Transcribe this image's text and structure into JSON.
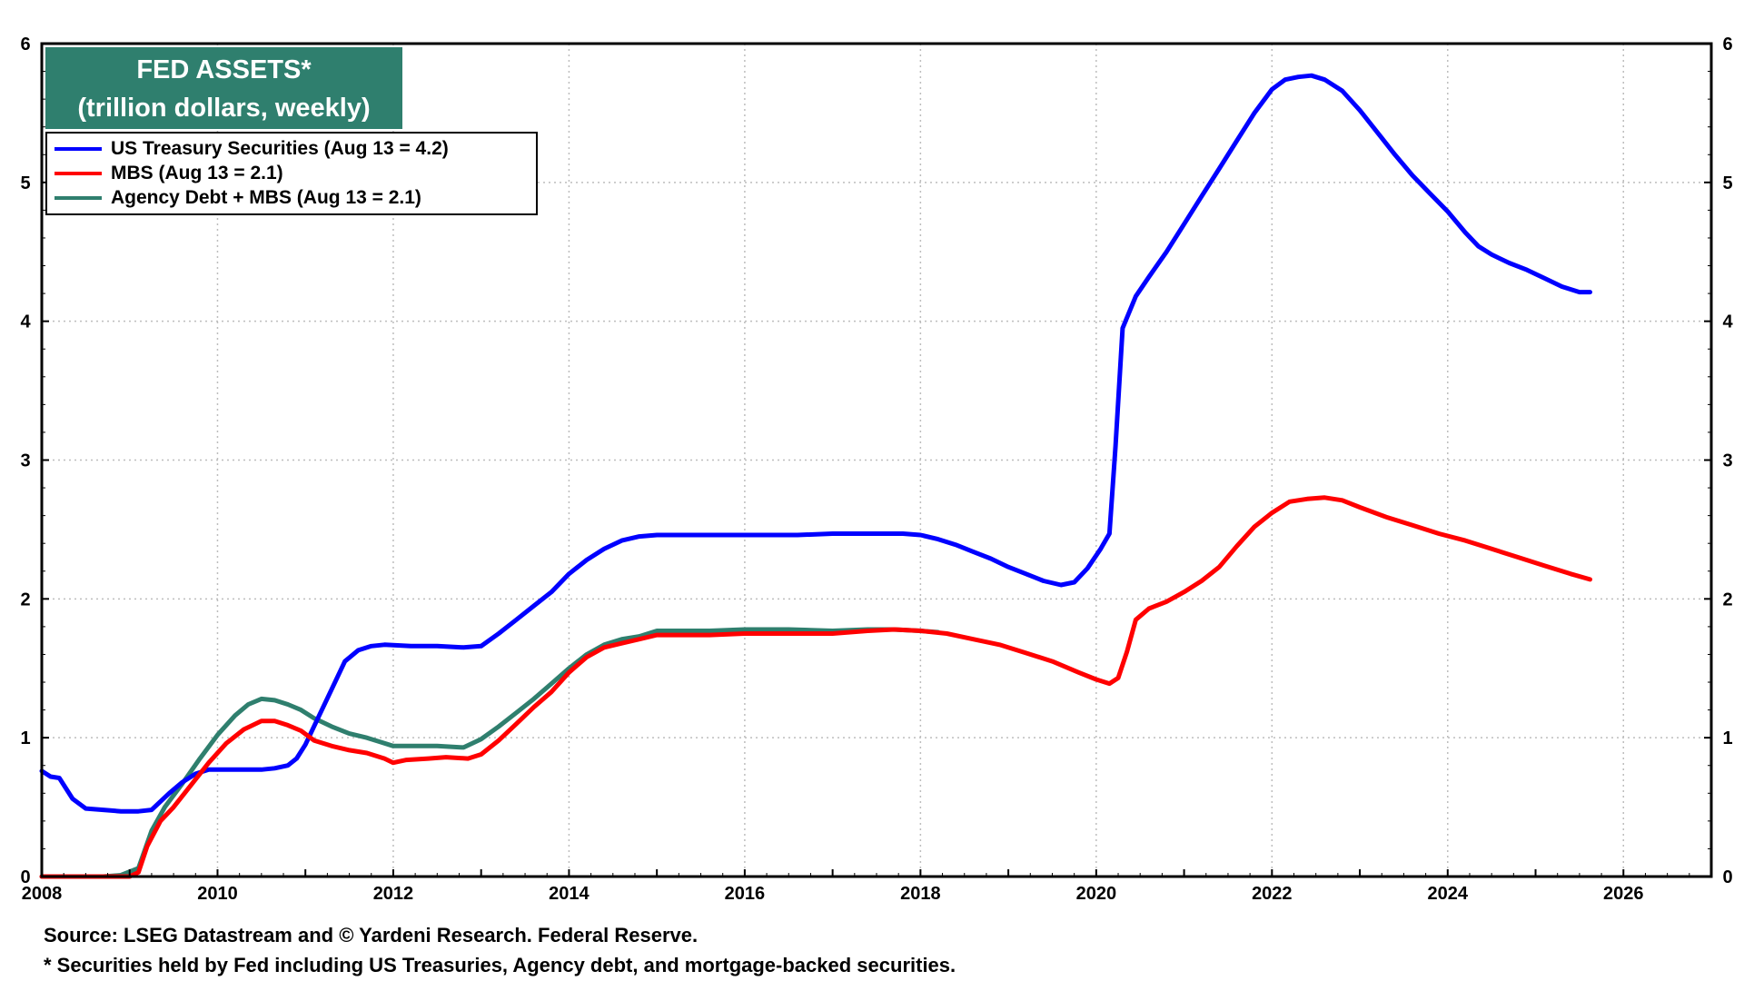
{
  "chart_data": {
    "type": "line",
    "title": "FED ASSETS*",
    "subtitle": "(trillion dollars, weekly)",
    "xlim": [
      2008,
      2027
    ],
    "ylim": [
      0,
      6
    ],
    "x_ticks": [
      "2008",
      "2010",
      "2012",
      "2014",
      "2016",
      "2018",
      "2020",
      "2022",
      "2024",
      "2026"
    ],
    "y_ticks": [
      "0",
      "1",
      "2",
      "3",
      "4",
      "5",
      "6"
    ],
    "grid": true,
    "legend_position": "top-left",
    "series": [
      {
        "name": "US Treasury Securities (Aug 13 = 4.2)",
        "color": "#0000ff",
        "points": [
          [
            2008.0,
            0.76
          ],
          [
            2008.1,
            0.72
          ],
          [
            2008.2,
            0.71
          ],
          [
            2008.35,
            0.56
          ],
          [
            2008.5,
            0.49
          ],
          [
            2008.7,
            0.48
          ],
          [
            2008.9,
            0.47
          ],
          [
            2009.1,
            0.47
          ],
          [
            2009.25,
            0.48
          ],
          [
            2009.45,
            0.6
          ],
          [
            2009.6,
            0.68
          ],
          [
            2009.75,
            0.74
          ],
          [
            2009.9,
            0.77
          ],
          [
            2010.2,
            0.77
          ],
          [
            2010.5,
            0.77
          ],
          [
            2010.65,
            0.78
          ],
          [
            2010.8,
            0.8
          ],
          [
            2010.9,
            0.85
          ],
          [
            2011.0,
            0.95
          ],
          [
            2011.15,
            1.15
          ],
          [
            2011.3,
            1.35
          ],
          [
            2011.45,
            1.55
          ],
          [
            2011.6,
            1.63
          ],
          [
            2011.75,
            1.66
          ],
          [
            2011.9,
            1.67
          ],
          [
            2012.2,
            1.66
          ],
          [
            2012.5,
            1.66
          ],
          [
            2012.8,
            1.65
          ],
          [
            2013.0,
            1.66
          ],
          [
            2013.2,
            1.75
          ],
          [
            2013.4,
            1.85
          ],
          [
            2013.6,
            1.95
          ],
          [
            2013.8,
            2.05
          ],
          [
            2014.0,
            2.18
          ],
          [
            2014.2,
            2.28
          ],
          [
            2014.4,
            2.36
          ],
          [
            2014.6,
            2.42
          ],
          [
            2014.8,
            2.45
          ],
          [
            2015.0,
            2.46
          ],
          [
            2015.5,
            2.46
          ],
          [
            2016.0,
            2.46
          ],
          [
            2016.6,
            2.46
          ],
          [
            2017.0,
            2.47
          ],
          [
            2017.4,
            2.47
          ],
          [
            2017.8,
            2.47
          ],
          [
            2018.0,
            2.46
          ],
          [
            2018.2,
            2.43
          ],
          [
            2018.4,
            2.39
          ],
          [
            2018.6,
            2.34
          ],
          [
            2018.8,
            2.29
          ],
          [
            2019.0,
            2.23
          ],
          [
            2019.2,
            2.18
          ],
          [
            2019.4,
            2.13
          ],
          [
            2019.6,
            2.1
          ],
          [
            2019.75,
            2.12
          ],
          [
            2019.9,
            2.22
          ],
          [
            2020.05,
            2.36
          ],
          [
            2020.15,
            2.47
          ],
          [
            2020.22,
            3.1
          ],
          [
            2020.3,
            3.95
          ],
          [
            2020.45,
            4.18
          ],
          [
            2020.6,
            4.32
          ],
          [
            2020.8,
            4.5
          ],
          [
            2021.0,
            4.7
          ],
          [
            2021.2,
            4.9
          ],
          [
            2021.4,
            5.1
          ],
          [
            2021.6,
            5.3
          ],
          [
            2021.8,
            5.5
          ],
          [
            2022.0,
            5.67
          ],
          [
            2022.15,
            5.74
          ],
          [
            2022.3,
            5.76
          ],
          [
            2022.45,
            5.77
          ],
          [
            2022.6,
            5.74
          ],
          [
            2022.8,
            5.66
          ],
          [
            2023.0,
            5.52
          ],
          [
            2023.2,
            5.36
          ],
          [
            2023.4,
            5.2
          ],
          [
            2023.6,
            5.05
          ],
          [
            2023.8,
            4.92
          ],
          [
            2024.0,
            4.79
          ],
          [
            2024.2,
            4.64
          ],
          [
            2024.35,
            4.54
          ],
          [
            2024.5,
            4.48
          ],
          [
            2024.7,
            4.42
          ],
          [
            2024.9,
            4.37
          ],
          [
            2025.1,
            4.31
          ],
          [
            2025.3,
            4.25
          ],
          [
            2025.5,
            4.21
          ],
          [
            2025.62,
            4.21
          ]
        ]
      },
      {
        "name": "MBS (Aug 13 = 2.1)",
        "color": "#ff0000",
        "points": [
          [
            2008.0,
            0.0
          ],
          [
            2009.0,
            0.0
          ],
          [
            2009.1,
            0.03
          ],
          [
            2009.2,
            0.22
          ],
          [
            2009.35,
            0.4
          ],
          [
            2009.5,
            0.5
          ],
          [
            2009.7,
            0.66
          ],
          [
            2009.9,
            0.82
          ],
          [
            2010.1,
            0.96
          ],
          [
            2010.3,
            1.06
          ],
          [
            2010.5,
            1.12
          ],
          [
            2010.65,
            1.12
          ],
          [
            2010.8,
            1.09
          ],
          [
            2010.95,
            1.05
          ],
          [
            2011.1,
            0.98
          ],
          [
            2011.3,
            0.94
          ],
          [
            2011.5,
            0.91
          ],
          [
            2011.7,
            0.89
          ],
          [
            2011.9,
            0.85
          ],
          [
            2012.0,
            0.82
          ],
          [
            2012.15,
            0.84
          ],
          [
            2012.4,
            0.85
          ],
          [
            2012.6,
            0.86
          ],
          [
            2012.85,
            0.85
          ],
          [
            2013.0,
            0.88
          ],
          [
            2013.2,
            0.98
          ],
          [
            2013.4,
            1.1
          ],
          [
            2013.6,
            1.22
          ],
          [
            2013.8,
            1.33
          ],
          [
            2014.0,
            1.47
          ],
          [
            2014.2,
            1.58
          ],
          [
            2014.4,
            1.65
          ],
          [
            2014.6,
            1.68
          ],
          [
            2014.8,
            1.71
          ],
          [
            2015.0,
            1.74
          ],
          [
            2015.3,
            1.74
          ],
          [
            2015.6,
            1.74
          ],
          [
            2016.0,
            1.75
          ],
          [
            2016.5,
            1.75
          ],
          [
            2017.0,
            1.75
          ],
          [
            2017.4,
            1.77
          ],
          [
            2017.7,
            1.78
          ],
          [
            2018.0,
            1.77
          ],
          [
            2018.3,
            1.75
          ],
          [
            2018.6,
            1.71
          ],
          [
            2018.9,
            1.67
          ],
          [
            2019.2,
            1.61
          ],
          [
            2019.5,
            1.55
          ],
          [
            2019.8,
            1.47
          ],
          [
            2020.0,
            1.42
          ],
          [
            2020.15,
            1.39
          ],
          [
            2020.25,
            1.43
          ],
          [
            2020.35,
            1.62
          ],
          [
            2020.45,
            1.85
          ],
          [
            2020.6,
            1.93
          ],
          [
            2020.8,
            1.98
          ],
          [
            2021.0,
            2.05
          ],
          [
            2021.2,
            2.13
          ],
          [
            2021.4,
            2.23
          ],
          [
            2021.6,
            2.38
          ],
          [
            2021.8,
            2.52
          ],
          [
            2022.0,
            2.62
          ],
          [
            2022.2,
            2.7
          ],
          [
            2022.4,
            2.72
          ],
          [
            2022.6,
            2.73
          ],
          [
            2022.8,
            2.71
          ],
          [
            2023.0,
            2.66
          ],
          [
            2023.3,
            2.59
          ],
          [
            2023.6,
            2.53
          ],
          [
            2023.9,
            2.47
          ],
          [
            2024.2,
            2.42
          ],
          [
            2024.5,
            2.36
          ],
          [
            2024.8,
            2.3
          ],
          [
            2025.1,
            2.24
          ],
          [
            2025.4,
            2.18
          ],
          [
            2025.62,
            2.14
          ]
        ]
      },
      {
        "name": "Agency Debt + MBS (Aug 13 = 2.1)",
        "color": "#2f7f6e",
        "points": [
          [
            2008.0,
            0.0
          ],
          [
            2008.7,
            0.0
          ],
          [
            2008.9,
            0.01
          ],
          [
            2009.1,
            0.06
          ],
          [
            2009.25,
            0.33
          ],
          [
            2009.4,
            0.5
          ],
          [
            2009.6,
            0.67
          ],
          [
            2009.8,
            0.85
          ],
          [
            2010.0,
            1.02
          ],
          [
            2010.2,
            1.16
          ],
          [
            2010.35,
            1.24
          ],
          [
            2010.5,
            1.28
          ],
          [
            2010.65,
            1.27
          ],
          [
            2010.8,
            1.24
          ],
          [
            2010.95,
            1.2
          ],
          [
            2011.1,
            1.14
          ],
          [
            2011.3,
            1.08
          ],
          [
            2011.5,
            1.03
          ],
          [
            2011.7,
            1.0
          ],
          [
            2011.85,
            0.97
          ],
          [
            2012.0,
            0.94
          ],
          [
            2012.2,
            0.94
          ],
          [
            2012.5,
            0.94
          ],
          [
            2012.8,
            0.93
          ],
          [
            2013.0,
            0.99
          ],
          [
            2013.2,
            1.08
          ],
          [
            2013.4,
            1.18
          ],
          [
            2013.6,
            1.28
          ],
          [
            2013.8,
            1.39
          ],
          [
            2014.0,
            1.5
          ],
          [
            2014.2,
            1.6
          ],
          [
            2014.4,
            1.67
          ],
          [
            2014.6,
            1.71
          ],
          [
            2014.8,
            1.73
          ],
          [
            2015.0,
            1.77
          ],
          [
            2015.3,
            1.77
          ],
          [
            2015.6,
            1.77
          ],
          [
            2016.0,
            1.78
          ],
          [
            2016.5,
            1.78
          ],
          [
            2017.0,
            1.77
          ],
          [
            2017.4,
            1.78
          ],
          [
            2017.7,
            1.78
          ],
          [
            2018.0,
            1.77
          ],
          [
            2018.2,
            1.76
          ]
        ]
      }
    ],
    "source": "Source: LSEG Datastream and © Yardeni Research. Federal Reserve.",
    "footnote": "* Securities held by Fed including US Treasuries, Agency debt, and mortgage-backed securities."
  }
}
